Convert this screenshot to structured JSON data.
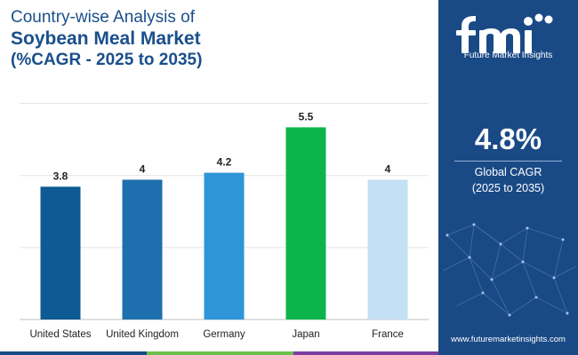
{
  "title": {
    "line1": "Country-wise Analysis of",
    "line2": "Soybean Meal Market",
    "line3": "(%CAGR - 2025 to 2035)"
  },
  "chart_data": {
    "type": "bar",
    "categories": [
      "United States",
      "United Kingdom",
      "Germany",
      "Japan",
      "France"
    ],
    "values": [
      3.8,
      4,
      4.2,
      5.5,
      4
    ],
    "value_labels": [
      "3.8",
      "4",
      "4.2",
      "5.5",
      "4"
    ],
    "colors": [
      "#0d5a94",
      "#1e6fae",
      "#2e95d8",
      "#0cb54b",
      "#c3e0f5"
    ],
    "ylim": [
      0,
      6.4
    ],
    "gridlines": [
      0,
      2.06,
      4.12,
      6.18
    ],
    "grid": true
  },
  "sidebar": {
    "logo_text": "Future Market Insights",
    "cagr_value": "4.8%",
    "cagr_label": "Global CAGR",
    "cagr_period": "(2025 to 2035)",
    "website": "www.futuremarketinsights.com"
  },
  "colors": {
    "title": "#1a4f8b",
    "panel": "#1a4a86",
    "strip": [
      "#1a4a86",
      "#6cbf4b",
      "#7b3fa0"
    ]
  }
}
